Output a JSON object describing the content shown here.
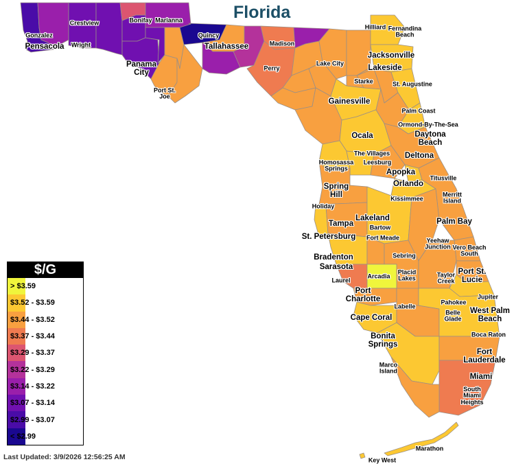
{
  "map": {
    "title": "Florida",
    "last_updated": "Last Updated: 3/9/2026 12:56:25 AM",
    "legend": {
      "header": "$/G",
      "items": [
        {
          "label": "> $3.59",
          "color": "#f0f53c"
        },
        {
          "label": "$3.52 - $3.59",
          "color": "#fcc832"
        },
        {
          "label": "$3.44 - $3.52",
          "color": "#f8a040"
        },
        {
          "label": "$3.37 - $3.44",
          "color": "#ef7b50"
        },
        {
          "label": "$3.29 - $3.37",
          "color": "#dc5570"
        },
        {
          "label": "$3.22 - $3.29",
          "color": "#b4329b"
        },
        {
          "label": "$3.14 - $3.22",
          "color": "#9a1fab"
        },
        {
          "label": "$3.07 - $3.14",
          "color": "#7010b0"
        },
        {
          "label": "$2.99 - $3.07",
          "color": "#4a0ca8"
        },
        {
          "label": "< $2.99",
          "color": "#1a0890"
        }
      ]
    },
    "cities": [
      {
        "id": "gonzalez",
        "name": "Gonzalez"
      },
      {
        "id": "pensacola",
        "name": "Pensacola"
      },
      {
        "id": "crestview",
        "name": "Crestview"
      },
      {
        "id": "wright",
        "name": "Wright"
      },
      {
        "id": "bonifay",
        "name": "Bonifay"
      },
      {
        "id": "marianna",
        "name": "Marianna"
      },
      {
        "id": "quincy",
        "name": "Quincy"
      },
      {
        "id": "tallahassee",
        "name": "Tallahassee"
      },
      {
        "id": "madison",
        "name": "Madison"
      },
      {
        "id": "panama-city",
        "name": "Panama\nCity"
      },
      {
        "id": "perry",
        "name": "Perry"
      },
      {
        "id": "port-st-joe",
        "name": "Port St.\nJoe"
      },
      {
        "id": "hilliard",
        "name": "Hilliard"
      },
      {
        "id": "fernandina-beach",
        "name": "Fernandina\nBeach"
      },
      {
        "id": "jacksonville",
        "name": "Jacksonville"
      },
      {
        "id": "lake-city",
        "name": "Lake City"
      },
      {
        "id": "lakeside",
        "name": "Lakeside"
      },
      {
        "id": "starke",
        "name": "Starke"
      },
      {
        "id": "st-augustine",
        "name": "St. Augustine"
      },
      {
        "id": "gainesville",
        "name": "Gainesville"
      },
      {
        "id": "palm-coast",
        "name": "Palm Coast"
      },
      {
        "id": "ormond",
        "name": "Ormond-By-The-Sea"
      },
      {
        "id": "daytona-beach",
        "name": "Daytona\nBeach"
      },
      {
        "id": "ocala",
        "name": "Ocala"
      },
      {
        "id": "the-villages",
        "name": "The Villages"
      },
      {
        "id": "deltona",
        "name": "Deltona"
      },
      {
        "id": "homosassa-springs",
        "name": "Homosassa\nSprings"
      },
      {
        "id": "leesburg",
        "name": "Leesburg"
      },
      {
        "id": "apopka",
        "name": "Apopka"
      },
      {
        "id": "titusville",
        "name": "Titusville"
      },
      {
        "id": "orlando",
        "name": "Orlando"
      },
      {
        "id": "spring-hill",
        "name": "Spring\nHill"
      },
      {
        "id": "kissimmee",
        "name": "Kissimmee"
      },
      {
        "id": "merritt-island",
        "name": "Merritt\nIsland"
      },
      {
        "id": "holiday",
        "name": "Holiday"
      },
      {
        "id": "lakeland",
        "name": "Lakeland"
      },
      {
        "id": "tampa",
        "name": "Tampa"
      },
      {
        "id": "bartow",
        "name": "Bartow"
      },
      {
        "id": "palm-bay",
        "name": "Palm Bay"
      },
      {
        "id": "st-petersburg",
        "name": "St. Petersburg"
      },
      {
        "id": "fort-meade",
        "name": "Fort Meade"
      },
      {
        "id": "yeehaw-junction",
        "name": "Yeehaw\nJunction"
      },
      {
        "id": "vero-beach-south",
        "name": "Vero Beach\nSouth"
      },
      {
        "id": "bradenton",
        "name": "Bradenton"
      },
      {
        "id": "sebring",
        "name": "Sebring"
      },
      {
        "id": "sarasota",
        "name": "Sarasota"
      },
      {
        "id": "arcadia",
        "name": "Arcadia"
      },
      {
        "id": "placid-lakes",
        "name": "Placid\nLakes"
      },
      {
        "id": "taylor-creek",
        "name": "Taylor\nCreek"
      },
      {
        "id": "port-st-lucie",
        "name": "Port St.\nLucie"
      },
      {
        "id": "laurel",
        "name": "Laurel"
      },
      {
        "id": "port-charlotte",
        "name": "Port\nCharlotte"
      },
      {
        "id": "jupiter",
        "name": "Jupiter"
      },
      {
        "id": "pahokee",
        "name": "Pahokee"
      },
      {
        "id": "labelle",
        "name": "Labelle"
      },
      {
        "id": "belle-glade",
        "name": "Belle\nGlade"
      },
      {
        "id": "west-palm-beach",
        "name": "West Palm\nBeach"
      },
      {
        "id": "cape-coral",
        "name": "Cape Coral"
      },
      {
        "id": "boca-raton",
        "name": "Boca Raton"
      },
      {
        "id": "bonita-springs",
        "name": "Bonita\nSprings"
      },
      {
        "id": "fort-lauderdale",
        "name": "Fort\nLauderdale"
      },
      {
        "id": "marco-island",
        "name": "Marco\nIsland"
      },
      {
        "id": "miami",
        "name": "Miami"
      },
      {
        "id": "south-miami-heights",
        "name": "South\nMiami\nHeights"
      },
      {
        "id": "marathon",
        "name": "Marathon"
      },
      {
        "id": "key-west",
        "name": "Key West"
      }
    ]
  }
}
